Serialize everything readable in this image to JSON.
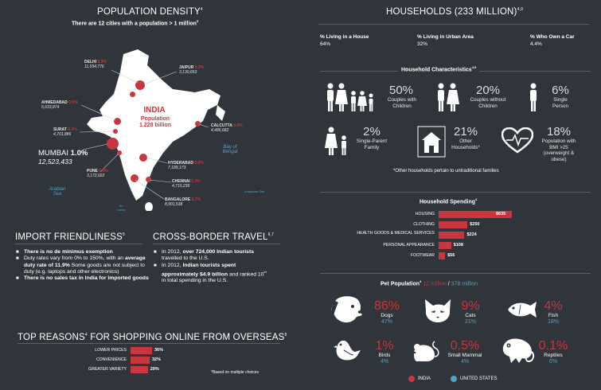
{
  "population": {
    "title": "POPULATION DENSITY",
    "title_sup": "4",
    "subtitle": "There are 12 cities with a population > 1 million",
    "subtitle_sup": "5",
    "country": "INDIA",
    "country_pop_label": "Population",
    "country_pop": "1.228 billion",
    "bay": "Bay of Bengal",
    "arabian": "Arabian Sea",
    "andaman": "Andaman Sea",
    "sri_lanka": "Sri Lanka",
    "cities": [
      {
        "name": "DELHI",
        "pct": "0.9%",
        "pop": "11,034,776"
      },
      {
        "name": "JAIPUR",
        "pct": "0.3%",
        "pop": "3,130,653"
      },
      {
        "name": "AHMEDABAD",
        "pct": "0.5%",
        "pop": "5,633,874"
      },
      {
        "name": "SURAT",
        "pct": "0.4%",
        "pop": "4,701,886"
      },
      {
        "name": "CALCUTTA",
        "pct": "0.4%",
        "pop": "4,486,682"
      },
      {
        "name": "MUMBAI",
        "pct": "1.0%",
        "pop": "12,523,433"
      },
      {
        "name": "PUNE",
        "pct": "0.3%",
        "pop": "3,172,022"
      },
      {
        "name": "HYDERABAD",
        "pct": "0.6%",
        "pop": "7,189,173"
      },
      {
        "name": "CHENNAI",
        "pct": "0.4%",
        "pop": "4,715,236"
      },
      {
        "name": "BANGALORE",
        "pct": "0.7%",
        "pop": "8,901,538"
      }
    ]
  },
  "import": {
    "title": "IMPORT FRIENDLINESS",
    "sup": "5",
    "b1": "There is no de minimus exemption",
    "b2a": "Duty rates vary from 0% to 150%, with an ",
    "b2b": "average duty rate of 11.9%",
    "b2c": " Some goods are not subject to duty (e.g. laptops and other electronics)",
    "b3": "There is no sales tax in India for imported goods"
  },
  "crossborder": {
    "title": "CROSS-BORDER TRAVEL",
    "sup": "6,7",
    "b1a": "In 2012, ",
    "b1b": "over 724,000 Indian tourists",
    "b1c": " travelled to the U.S.",
    "b2a": "In 2012, ",
    "b2b": "Indian tourists spent approximately $4.9 billion",
    "b2c": " and ranked 10",
    "b2sup": "th",
    "b2d": " in total spending in the U.S."
  },
  "reasons": {
    "title": "TOP REASONS",
    "title_sup": "4",
    "title_rest": " FOR SHOPPING ONLINE FROM OVERSEAS",
    "title_sup2": "8",
    "note": "*Based on multiple choices",
    "chart_data": {
      "type": "bar",
      "categories": [
        "LOWER PRICES",
        "CONVENIENCE",
        "GREATER VARIETY"
      ],
      "values": [
        36,
        32,
        29
      ],
      "labels": [
        "36%",
        "32%",
        "29%"
      ]
    }
  },
  "households": {
    "title": "HOUSEHOLDS (233 MILLION)",
    "title_sup": "4,9",
    "stats": [
      {
        "label": "% Living in a House",
        "value": "64%"
      },
      {
        "label": "% Living in Urban Area",
        "value": "32%"
      },
      {
        "label": "% Who Own a Car",
        "value": "4.4%"
      }
    ],
    "char_title": "Household Characteristics",
    "char_sup": "4,9",
    "chars": [
      {
        "pct": "50%",
        "label": "Couples with Children"
      },
      {
        "pct": "20%",
        "label": "Couples without Children"
      },
      {
        "pct": "6%",
        "label": "Single Person"
      },
      {
        "pct": "2%",
        "label": "Single-Parent Family"
      },
      {
        "pct": "21%",
        "label": "Other Households*"
      },
      {
        "pct": "18%",
        "label": "Population with BMI >25 (overweight & obese)"
      }
    ],
    "char_note": "*Other households pertain to untraditional families"
  },
  "spending": {
    "title": "Household Spending",
    "sup": "4",
    "chart_data": {
      "type": "bar",
      "categories": [
        "HOUSING",
        "CLOTHING",
        "HEALTH GOODS & MEDICAL SERVICES",
        "PERSONAL APPEARANCE",
        "FOOTWEAR"
      ],
      "values": [
        635,
        250,
        224,
        108,
        56
      ],
      "labels": [
        "$635",
        "$250",
        "$224",
        "$108",
        "$56"
      ]
    }
  },
  "pets": {
    "title": "Pet Population",
    "sup": "4",
    "india": "12 million",
    "slash": " / ",
    "us": "378 million",
    "items": [
      {
        "name": "Dogs",
        "india": "86%",
        "us": "47%",
        "icon": "dog-icon"
      },
      {
        "name": "Cats",
        "india": "9%",
        "us": "21%",
        "icon": "cat-icon"
      },
      {
        "name": "Fish",
        "india": "4%",
        "us": "18%",
        "icon": "fish-icon"
      },
      {
        "name": "Birds",
        "india": "1%",
        "us": "4%",
        "icon": "bird-icon"
      },
      {
        "name": "Small Mammal",
        "india": "0.5%",
        "us": "4%",
        "icon": "mouse-icon"
      },
      {
        "name": "Reptiles",
        "india": "0.1%",
        "us": "6%",
        "icon": "chameleon-icon"
      }
    ],
    "legend_india": "INDIA",
    "legend_us": "UNITED STATES",
    "colors": {
      "india": "#c8373d",
      "us": "#4fa3c4"
    }
  }
}
